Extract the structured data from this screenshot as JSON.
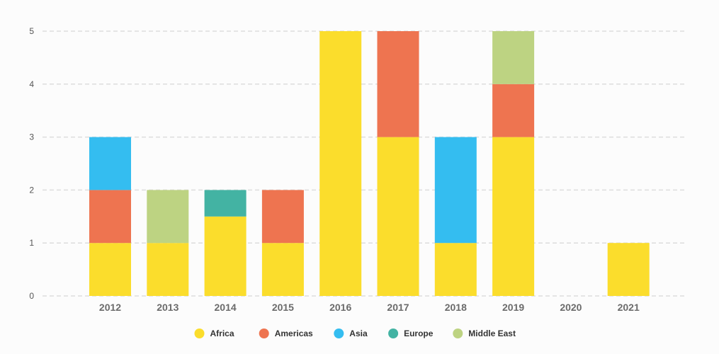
{
  "chart_data": {
    "type": "bar",
    "stacked": true,
    "categories": [
      "2012",
      "2013",
      "2014",
      "2015",
      "2016",
      "2017",
      "2018",
      "2019",
      "2020",
      "2021"
    ],
    "series": [
      {
        "name": "Africa",
        "color": "#fbdd2c",
        "values": [
          1,
          1,
          1.5,
          1,
          5,
          3,
          1,
          3,
          0,
          1
        ]
      },
      {
        "name": "Americas",
        "color": "#ee7450",
        "values": [
          1,
          0,
          0,
          1,
          0,
          2,
          0,
          1,
          0,
          0
        ]
      },
      {
        "name": "Asia",
        "color": "#34bdf0",
        "values": [
          1,
          0,
          0,
          0,
          0,
          0,
          2,
          0,
          0,
          0
        ]
      },
      {
        "name": "Europe",
        "color": "#43b3a3",
        "values": [
          0,
          0,
          0.5,
          0,
          0,
          0,
          0,
          0,
          0,
          0
        ]
      },
      {
        "name": "Middle East",
        "color": "#bdd382",
        "values": [
          0,
          1,
          0,
          0,
          0,
          0,
          0,
          1,
          0,
          0
        ]
      }
    ],
    "ylim": [
      0,
      5
    ],
    "yticks": [
      "0",
      "1",
      "2",
      "3",
      "4",
      "5"
    ],
    "grid": true,
    "legend_position": "bottom-center"
  }
}
